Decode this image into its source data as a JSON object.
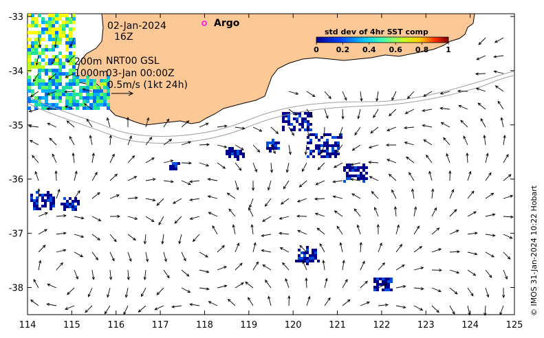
{
  "map": {
    "date": "02-Jan-2024",
    "hour": "16Z",
    "depth_shallow": "200m",
    "depth_deep": "1000m",
    "current_info": "NRT00 GSL",
    "current_time": "03-Jan 00:00Z",
    "scale_label": "0.5m/s (1kt 24h)",
    "legend_argo": "Argo",
    "colorbar_title": "std dev of 4hr SST comp",
    "colorbar_ticks": [
      "0",
      "0.2",
      "0.4",
      "0.6",
      "0.8",
      "1"
    ],
    "credit": "© IMOS 31-Jan-2024 10:22 Hobart",
    "lon_ticks": [
      "114",
      "115",
      "116",
      "117",
      "118",
      "119",
      "120",
      "121",
      "122",
      "123",
      "124",
      "125"
    ],
    "lat_ticks": [
      "-33",
      "-34",
      "-35",
      "-36",
      "-37",
      "-38"
    ],
    "lon_range": [
      114,
      125
    ],
    "lat_range": [
      -38.5,
      -32.95
    ],
    "land_color": "#fbc896",
    "colors": {
      "low": "#00008f",
      "mid": "#00ff80",
      "high": "#ffff00",
      "max": "#800000"
    }
  }
}
